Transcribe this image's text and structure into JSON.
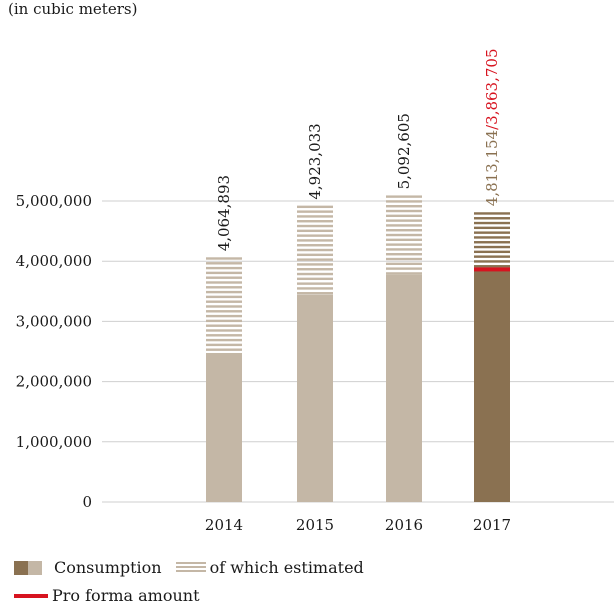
{
  "chart_data": {
    "type": "bar",
    "unit_label": "(in cubic meters)",
    "categories": [
      "2014",
      "2015",
      "2016",
      "2017"
    ],
    "series": [
      {
        "name": "Consumption",
        "values": [
          4064893,
          4923033,
          5092605,
          4813154
        ]
      },
      {
        "name": "of which estimated",
        "values": [
          1590000,
          1480000,
          1310000,
          920000
        ]
      },
      {
        "name": "Pro forma amount",
        "values": [
          null,
          null,
          null,
          3863705
        ]
      }
    ],
    "data_labels": [
      "4,064,893",
      "4,923,033",
      "5,092,605",
      "4,813,154",
      "/3,863,705"
    ],
    "yticks": [
      "0",
      "1,000,000",
      "2,000,000",
      "3,000,000",
      "4,000,000",
      "5,000,000"
    ],
    "ytick_values": [
      0,
      1000000,
      2000000,
      3000000,
      4000000,
      5000000
    ],
    "ylim": [
      0,
      5000000
    ],
    "legend": {
      "consumption": "Consumption",
      "estimated": "of which estimated",
      "proforma": "Pro forma amount"
    },
    "colors": {
      "light_bar": "#c4b7a6",
      "dark_bar": "#8a7151",
      "proforma": "#d7131f",
      "grid": "#cfcfcf",
      "label_2017": "#8a7151"
    }
  }
}
